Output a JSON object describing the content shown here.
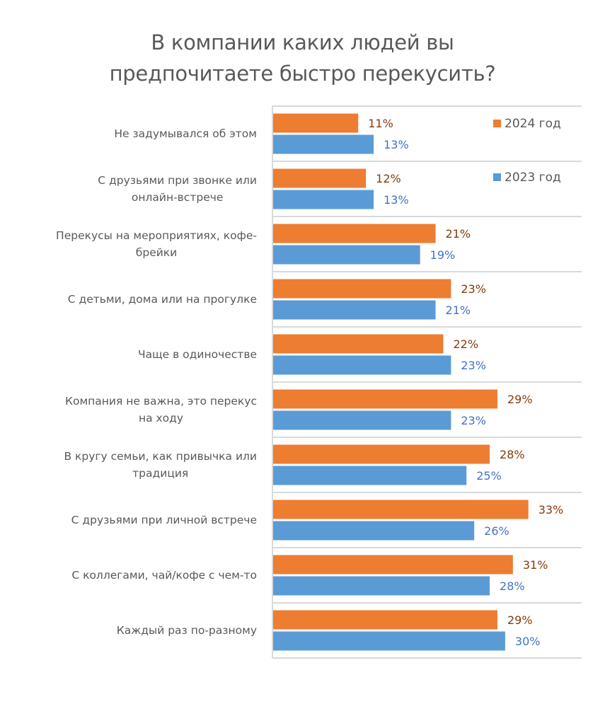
{
  "chart_data": {
    "type": "bar",
    "orientation": "horizontal",
    "title": [
      "В компании каких людей вы",
      "предпочитаете быстро перекусить?"
    ],
    "xlabel": "",
    "ylabel": "",
    "xlim": [
      0,
      40
    ],
    "grid": "horizontal separators",
    "legend_position": "top-right",
    "categories": [
      [
        "Не задумывался об этом"
      ],
      [
        "С друзьями при звонке или",
        "онлайн-встрече"
      ],
      [
        "Перекусы на мероприятиях, кофе-",
        "брейки"
      ],
      [
        "С детьми, дома или на прогулке"
      ],
      [
        "Чаще в одиночестве"
      ],
      [
        "Компания не важна, это перекус",
        "на ходу"
      ],
      [
        "В кругу семьи, как привычка или",
        "традиция"
      ],
      [
        "С друзьями при личной встрече"
      ],
      [
        "С коллегами, чай/кофе с чем-то"
      ],
      [
        "Каждый раз по-разному"
      ]
    ],
    "series": [
      {
        "name": "2024 год",
        "color": "#ED7D31",
        "label_color": "#843C0C",
        "values": [
          11,
          12,
          21,
          23,
          22,
          29,
          28,
          33,
          31,
          29
        ],
        "labels": [
          "11%",
          "12%",
          "21%",
          "23%",
          "22%",
          "29%",
          "28%",
          "33%",
          "31%",
          "29%"
        ]
      },
      {
        "name": "2023 год",
        "color": "#5B9BD5",
        "label_color": "#4472C4",
        "values": [
          13,
          13,
          19,
          21,
          23,
          23,
          25,
          26,
          28,
          30
        ],
        "labels": [
          "13%",
          "13%",
          "19%",
          "21%",
          "23%",
          "23%",
          "25%",
          "26%",
          "28%",
          "30%"
        ]
      }
    ]
  },
  "colors": {
    "grid": "#D9D9D9",
    "text": "#595959"
  }
}
